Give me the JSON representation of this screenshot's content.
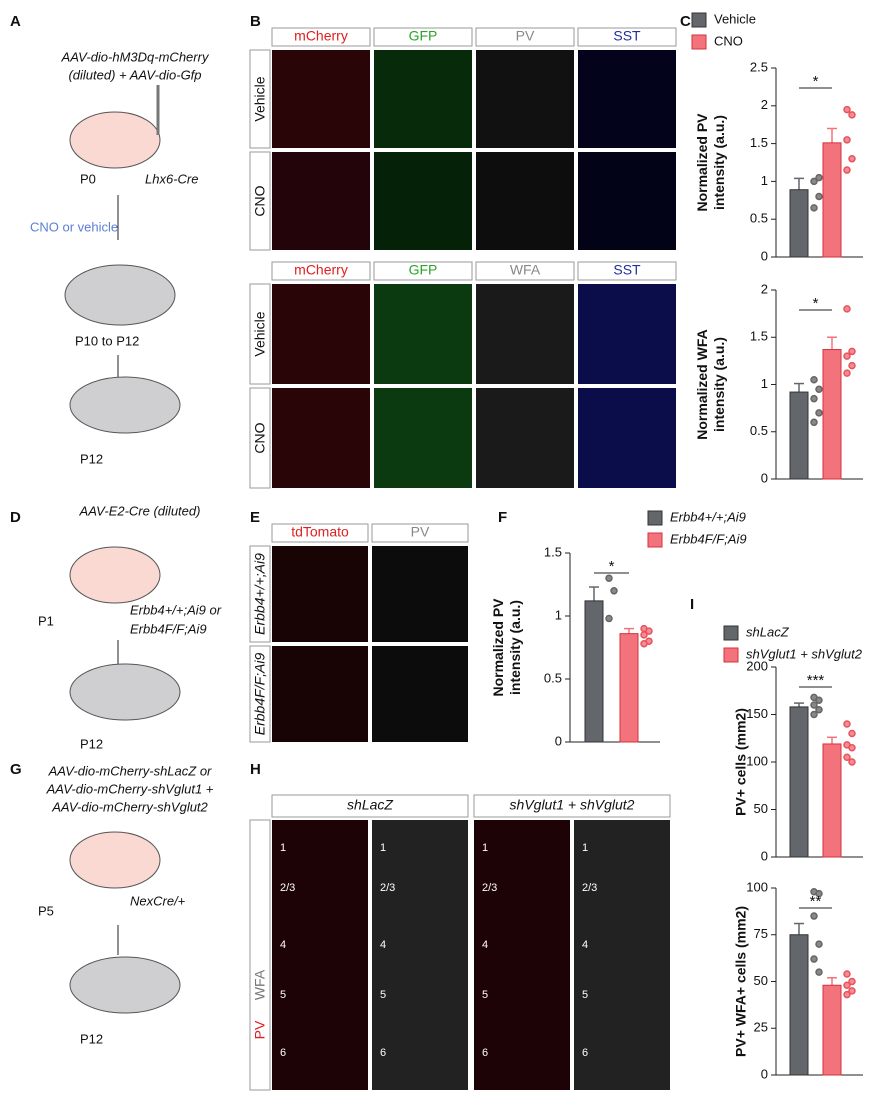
{
  "chart_data": [
    {
      "type": "bar",
      "ylabel": [
        "Normalized PV",
        "intensity (a.u.)"
      ],
      "ylim": [
        0,
        2.5
      ],
      "yticks": [
        0,
        0.5,
        1,
        1.5,
        2,
        2.5
      ],
      "annotation": "*",
      "legend": "top-left",
      "series": [
        {
          "name": "Vehicle",
          "color": "#63666b",
          "values": [
            0.89
          ],
          "errors": [
            0.15
          ],
          "points": [
            0.65,
            0.8,
            1.0,
            1.05
          ]
        },
        {
          "name": "CNO",
          "color": "#f2737c",
          "values": [
            1.51
          ],
          "errors": [
            0.19
          ],
          "points": [
            1.95,
            1.88,
            1.55,
            1.3,
            1.15
          ]
        }
      ]
    },
    {
      "type": "bar",
      "ylabel": [
        "Normalized WFA",
        "intensity (a.u.)"
      ],
      "ylim": [
        0,
        2
      ],
      "yticks": [
        0,
        0.5,
        1,
        1.5,
        2
      ],
      "annotation": "*",
      "series": [
        {
          "color": "#63666b",
          "values": [
            0.92
          ],
          "errors": [
            0.09
          ],
          "points": [
            0.6,
            0.7,
            0.85,
            0.95,
            1.05
          ]
        },
        {
          "color": "#f2737c",
          "values": [
            1.37
          ],
          "errors": [
            0.13
          ],
          "points": [
            1.8,
            1.35,
            1.3,
            1.2,
            1.12
          ]
        }
      ]
    },
    {
      "type": "bar",
      "ylabel": [
        "Normalized PV",
        "intensity (a.u.)"
      ],
      "ylim": [
        0,
        1.5
      ],
      "yticks": [
        0,
        0.5,
        1,
        1.5
      ],
      "annotation": "*",
      "legend": "top-right",
      "series": [
        {
          "name": "Erbb4+/+;Ai9",
          "color": "#63666b",
          "values": [
            1.12
          ],
          "errors": [
            0.11
          ],
          "points": [
            1.3,
            1.2,
            0.98
          ]
        },
        {
          "name": "Erbb4F/F;Ai9",
          "color": "#f2737c",
          "values": [
            0.86
          ],
          "errors": [
            0.04
          ],
          "points": [
            0.9,
            0.88,
            0.85,
            0.8,
            0.78
          ]
        }
      ]
    },
    {
      "type": "bar",
      "ylabel": [
        "PV+ cells (mm2)"
      ],
      "ylim": [
        0,
        200
      ],
      "yticks": [
        0,
        50,
        100,
        150,
        200
      ],
      "annotation": "***",
      "legend": "top-left",
      "series": [
        {
          "name": "shLacZ",
          "color": "#63666b",
          "values": [
            158
          ],
          "errors": [
            4
          ],
          "points": [
            168,
            165,
            160,
            155,
            150
          ]
        },
        {
          "name": "shVglut1 + shVglut2",
          "color": "#f2737c",
          "values": [
            119
          ],
          "errors": [
            7
          ],
          "points": [
            140,
            130,
            118,
            115,
            105,
            100
          ]
        }
      ]
    },
    {
      "type": "bar",
      "ylabel": [
        "PV+ WFA+ cells (mm2)"
      ],
      "ylim": [
        0,
        100
      ],
      "yticks": [
        0,
        25,
        50,
        75,
        100
      ],
      "annotation": "**",
      "series": [
        {
          "color": "#63666b",
          "values": [
            75
          ],
          "errors": [
            6
          ],
          "points": [
            98,
            97,
            85,
            70,
            62,
            55
          ]
        },
        {
          "color": "#f2737c",
          "values": [
            48
          ],
          "errors": [
            4
          ],
          "points": [
            54,
            50,
            48,
            45,
            43
          ]
        }
      ]
    }
  ],
  "panels": {
    "A": {
      "label": "A",
      "construct": [
        "AAV-dio-hM3Dq-mCherry",
        "(diluted) + AAV-dio-Gfp"
      ],
      "mouse_line": "Lhx6-Cre",
      "injection": "CNO or vehicle",
      "ages": [
        "P0",
        "P10 to P12",
        "P12"
      ]
    },
    "B": {
      "label": "B",
      "headers_top": [
        "mCherry",
        "GFP",
        "PV",
        "SST"
      ],
      "headers_bottom": [
        "mCherry",
        "GFP",
        "WFA",
        "SST"
      ],
      "rows": [
        "Vehicle",
        "CNO"
      ]
    },
    "C": {
      "label": "C"
    },
    "D": {
      "label": "D",
      "construct": "AAV-E2-Cre (diluted)",
      "genotypes": [
        "Erbb4+/+;Ai9 or",
        "Erbb4F/F;Ai9"
      ],
      "ages": [
        "P1",
        "P12"
      ]
    },
    "E": {
      "label": "E",
      "headers": [
        "tdTomato",
        "PV"
      ],
      "rows": [
        "Erbb4+/+;Ai9",
        "Erbb4F/F;Ai9"
      ]
    },
    "F": {
      "label": "F"
    },
    "G": {
      "label": "G",
      "construct": [
        "AAV-dio-mCherry-shLacZ or",
        "AAV-dio-mCherry-shVglut1 +",
        "AAV-dio-mCherry-shVglut2"
      ],
      "mouse_line": "NexCre/+",
      "ages": [
        "P5",
        "P12"
      ]
    },
    "H": {
      "label": "H",
      "headers": [
        "shLacZ",
        "shVglut1 + shVglut2"
      ],
      "side": [
        "PV",
        "WFA"
      ],
      "layers": [
        "1",
        "2/3",
        "4",
        "5",
        "6"
      ]
    },
    "I": {
      "label": "I"
    }
  }
}
